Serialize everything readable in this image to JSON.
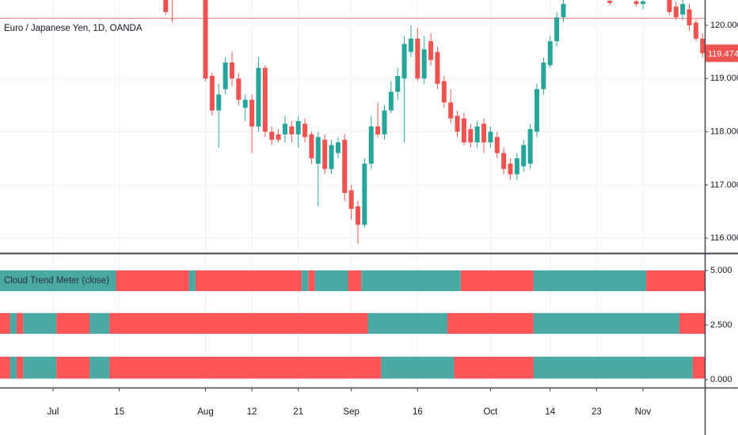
{
  "chart_data": [
    {
      "type": "candlestick",
      "title": "Euro / Japanese Yen, 1D, OANDA",
      "categories": [
        null,
        null,
        null,
        null,
        null,
        null,
        null,
        null,
        "Jul",
        null,
        null,
        null,
        null,
        null,
        null,
        null,
        null,
        null,
        "15",
        null,
        null,
        null,
        null,
        null,
        null,
        null,
        null,
        null,
        null,
        null,
        null,
        "Aug",
        null,
        null,
        null,
        null,
        null,
        null,
        "12",
        null,
        null,
        null,
        null,
        null,
        null,
        "21",
        null,
        null,
        null,
        null,
        null,
        null,
        null,
        "Sep",
        null,
        null,
        null,
        null,
        null,
        null,
        null,
        null,
        null,
        "16",
        null,
        null,
        null,
        null,
        null,
        null,
        null,
        null,
        null,
        null,
        "Oct",
        null,
        null,
        null,
        null,
        null,
        null,
        null,
        null,
        "14",
        null,
        null,
        null,
        null,
        null,
        null,
        "23",
        null,
        null,
        null,
        null,
        null,
        null,
        "Nov",
        null,
        null,
        null,
        null,
        null,
        null,
        null,
        null,
        null
      ],
      "open": [
        null,
        null,
        null,
        null,
        null,
        null,
        null,
        null,
        null,
        null,
        null,
        null,
        null,
        null,
        null,
        null,
        null,
        null,
        null,
        null,
        null,
        null,
        null,
        null,
        null,
        120.55,
        120.6,
        null,
        null,
        null,
        null,
        120.5,
        119.05,
        118.4,
        118.8,
        119.3,
        119.0,
        118.45,
        118.6,
        118.1,
        119.2,
        118.0,
        117.95,
        117.95,
        118.1,
        117.95,
        118.15,
        117.95,
        117.4,
        117.85,
        117.3,
        117.6,
        117.85,
        116.9,
        116.6,
        116.25,
        117.4,
        118.1,
        117.95,
        118.4,
        118.75,
        119.0,
        119.5,
        119.75,
        119.0,
        119.7,
        119.5,
        118.95,
        118.55,
        118.3,
        118.25,
        118.05,
        117.8,
        118.15,
        117.8,
        117.9,
        117.6,
        117.4,
        117.2,
        117.35,
        117.4,
        118.0,
        118.8,
        119.25,
        119.7,
        120.15,
        null,
        null,
        null,
        null,
        null,
        null,
        120.46,
        null,
        null,
        null,
        120.45,
        120.4,
        null,
        null,
        null,
        120.5,
        120.35,
        120.2,
        120.3,
        120.05,
        119.75
      ],
      "high": [
        null,
        null,
        null,
        null,
        null,
        null,
        null,
        null,
        null,
        null,
        null,
        null,
        null,
        null,
        null,
        null,
        null,
        null,
        null,
        null,
        null,
        null,
        null,
        null,
        null,
        120.6,
        120.7,
        null,
        null,
        null,
        null,
        120.6,
        119.1,
        118.9,
        119.4,
        119.5,
        119.1,
        118.7,
        118.7,
        119.4,
        119.25,
        118.1,
        118.05,
        118.3,
        118.2,
        118.3,
        118.25,
        118.0,
        118.0,
        117.95,
        117.85,
        117.9,
        117.95,
        117.0,
        116.7,
        117.5,
        118.3,
        118.55,
        118.5,
        118.95,
        119.2,
        119.8,
        120.0,
        119.95,
        119.8,
        119.85,
        119.6,
        119.05,
        118.8,
        118.4,
        118.35,
        118.15,
        118.2,
        118.25,
        118.1,
        118.0,
        117.7,
        117.5,
        117.6,
        117.85,
        118.15,
        118.9,
        119.4,
        119.8,
        120.25,
        120.5,
        null,
        null,
        null,
        null,
        null,
        null,
        120.55,
        null,
        null,
        null,
        120.55,
        120.55,
        null,
        null,
        null,
        120.6,
        120.45,
        120.5,
        120.4,
        120.1,
        119.85
      ],
      "low": [
        null,
        null,
        null,
        null,
        null,
        null,
        null,
        null,
        null,
        null,
        null,
        null,
        null,
        null,
        null,
        null,
        null,
        null,
        null,
        null,
        null,
        null,
        null,
        null,
        null,
        120.2,
        120.05,
        null,
        null,
        null,
        null,
        118.95,
        118.3,
        117.7,
        118.7,
        118.85,
        118.5,
        118.2,
        117.6,
        118.0,
        117.9,
        117.75,
        117.8,
        117.8,
        117.8,
        117.7,
        117.8,
        117.4,
        116.6,
        117.2,
        117.2,
        117.5,
        116.7,
        116.35,
        115.9,
        116.2,
        117.3,
        117.9,
        117.85,
        118.35,
        118.6,
        117.8,
        119.4,
        118.95,
        118.9,
        119.25,
        118.8,
        118.45,
        118.15,
        117.9,
        117.75,
        117.7,
        117.7,
        117.6,
        117.7,
        117.5,
        117.2,
        117.1,
        117.1,
        117.25,
        117.3,
        117.9,
        118.7,
        119.2,
        119.6,
        120.05,
        null,
        null,
        null,
        null,
        null,
        null,
        120.38,
        null,
        null,
        null,
        120.35,
        120.3,
        null,
        null,
        null,
        120.2,
        120.1,
        120.1,
        119.9,
        119.7,
        119.4
      ],
      "close": [
        null,
        null,
        null,
        null,
        null,
        null,
        null,
        null,
        null,
        null,
        null,
        null,
        null,
        null,
        null,
        null,
        null,
        null,
        null,
        null,
        null,
        null,
        null,
        null,
        null,
        120.25,
        120.55,
        null,
        null,
        null,
        null,
        119.0,
        118.4,
        118.7,
        119.3,
        119.0,
        118.6,
        118.6,
        118.1,
        119.2,
        118.0,
        117.85,
        117.85,
        118.15,
        117.95,
        118.2,
        117.9,
        117.5,
        117.9,
        117.3,
        117.75,
        117.8,
        116.85,
        116.55,
        116.25,
        117.4,
        118.1,
        117.95,
        118.4,
        118.75,
        119.05,
        119.65,
        119.75,
        119.0,
        119.55,
        119.35,
        118.9,
        118.55,
        118.25,
        118.0,
        117.8,
        117.8,
        118.1,
        117.8,
        118.0,
        117.6,
        117.3,
        117.2,
        117.5,
        117.75,
        118.05,
        118.8,
        119.3,
        119.7,
        120.15,
        120.4,
        null,
        null,
        null,
        null,
        null,
        null,
        120.42,
        null,
        null,
        null,
        120.4,
        120.45,
        null,
        null,
        null,
        120.25,
        120.15,
        120.4,
        120.0,
        119.75,
        119.474
      ],
      "up_color": "#26a69a",
      "down_color": "#ef5350",
      "last_price": 119.474,
      "price_line": 120.13,
      "ylim": [
        115.72,
        120.475
      ],
      "yticks": [
        {
          "value": 120,
          "label": "120.000"
        },
        {
          "value": 119,
          "label": "119.000"
        },
        {
          "value": 118,
          "label": "118.000"
        },
        {
          "value": 117,
          "label": "117.000"
        },
        {
          "value": 116,
          "label": "116.000"
        }
      ],
      "grid": true
    },
    {
      "type": "trend-bands",
      "title": "Cloud Trend Meter (close)",
      "ylim": [
        -0.36,
        5.72
      ],
      "yticks": [
        {
          "value": 5,
          "label": "5.000"
        },
        {
          "value": 2.5,
          "label": "2.500"
        },
        {
          "value": 0,
          "label": "0.000"
        }
      ],
      "colors": {
        "up": "#4ba9a3",
        "down": "#fd5457"
      },
      "rows": [
        {
          "range": [
            4.05,
            5
          ],
          "segments": [
            {
              "trend": "up",
              "start": 0,
              "end": 17
            },
            {
              "trend": "down",
              "start": 18,
              "end": 28
            },
            {
              "trend": "up",
              "start": 29,
              "end": 29
            },
            {
              "trend": "down",
              "start": 30,
              "end": 45
            },
            {
              "trend": "up",
              "start": 46,
              "end": 46
            },
            {
              "trend": "down",
              "start": 47,
              "end": 47
            },
            {
              "trend": "up",
              "start": 48,
              "end": 52
            },
            {
              "trend": "down",
              "start": 53,
              "end": 54
            },
            {
              "trend": "up",
              "start": 55,
              "end": 69
            },
            {
              "trend": "down",
              "start": 70,
              "end": 80
            },
            {
              "trend": "up",
              "start": 81,
              "end": 97
            },
            {
              "trend": "down",
              "start": 98,
              "end": 106
            }
          ]
        },
        {
          "range": [
            2.1,
            3.05
          ],
          "segments": [
            {
              "trend": "down",
              "start": 0,
              "end": 1
            },
            {
              "trend": "up",
              "start": 2,
              "end": 2
            },
            {
              "trend": "down",
              "start": 3,
              "end": 3
            },
            {
              "trend": "up",
              "start": 4,
              "end": 8
            },
            {
              "trend": "down",
              "start": 9,
              "end": 13
            },
            {
              "trend": "up",
              "start": 14,
              "end": 16
            },
            {
              "trend": "down",
              "start": 17,
              "end": 55
            },
            {
              "trend": "up",
              "start": 56,
              "end": 67
            },
            {
              "trend": "down",
              "start": 68,
              "end": 80
            },
            {
              "trend": "up",
              "start": 81,
              "end": 102
            },
            {
              "trend": "down",
              "start": 103,
              "end": 106
            }
          ]
        },
        {
          "range": [
            0.05,
            1.05
          ],
          "segments": [
            {
              "trend": "down",
              "start": 0,
              "end": 1
            },
            {
              "trend": "up",
              "start": 2,
              "end": 2
            },
            {
              "trend": "down",
              "start": 3,
              "end": 3
            },
            {
              "trend": "up",
              "start": 4,
              "end": 8
            },
            {
              "trend": "down",
              "start": 9,
              "end": 13
            },
            {
              "trend": "up",
              "start": 14,
              "end": 16
            },
            {
              "trend": "down",
              "start": 17,
              "end": 57
            },
            {
              "trend": "up",
              "start": 58,
              "end": 68
            },
            {
              "trend": "down",
              "start": 69,
              "end": 80
            },
            {
              "trend": "up",
              "start": 81,
              "end": 104
            },
            {
              "trend": "down",
              "start": 105,
              "end": 106
            }
          ]
        }
      ]
    }
  ]
}
